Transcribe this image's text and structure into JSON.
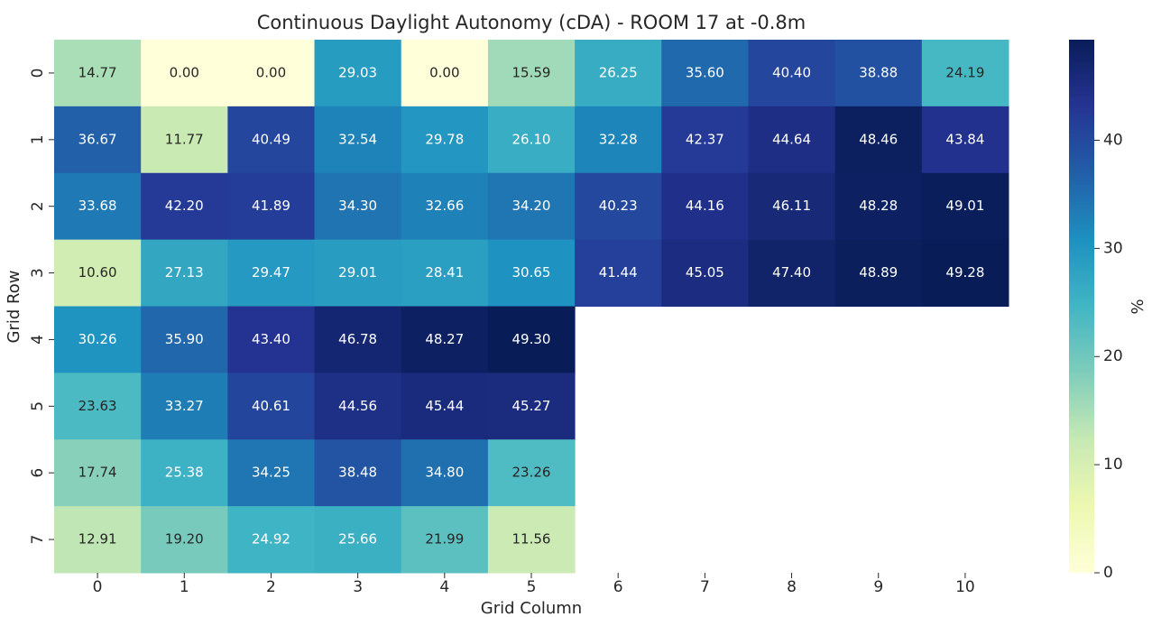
{
  "chart_data": {
    "type": "heatmap",
    "title": "Continuous Daylight Autonomy (cDA) - ROOM 17 at -0.8m",
    "x_label": "Grid Column",
    "y_label": "Grid Row",
    "columns": [
      0,
      1,
      2,
      3,
      4,
      5,
      6,
      7,
      8,
      9,
      10
    ],
    "rows": [
      0,
      1,
      2,
      3,
      4,
      5,
      6,
      7
    ],
    "colormap": "YlGnBu",
    "values": [
      [
        14.77,
        0,
        0,
        29.03,
        0,
        15.59,
        26.25,
        35.6,
        40.4,
        38.88,
        24.19
      ],
      [
        36.67,
        11.77,
        40.49,
        32.54,
        29.78,
        26.1,
        32.28,
        42.37,
        44.64,
        48.46,
        43.84
      ],
      [
        33.68,
        42.2,
        41.89,
        34.3,
        32.66,
        34.2,
        40.23,
        44.16,
        46.11,
        48.28,
        49.01
      ],
      [
        10.6,
        27.13,
        29.47,
        29.01,
        28.41,
        30.65,
        41.44,
        45.05,
        47.4,
        48.89,
        49.28
      ],
      [
        30.26,
        35.9,
        43.4,
        46.78,
        48.27,
        49.3,
        null,
        null,
        null,
        null,
        null
      ],
      [
        23.63,
        33.27,
        40.61,
        44.56,
        45.44,
        45.27,
        null,
        null,
        null,
        null,
        null
      ],
      [
        17.74,
        25.38,
        34.25,
        38.48,
        34.8,
        23.26,
        null,
        null,
        null,
        null,
        null
      ],
      [
        12.91,
        19.2,
        24.92,
        25.66,
        21.99,
        11.56,
        null,
        null,
        null,
        null,
        null
      ]
    ],
    "value_labels": [
      [
        "14.77",
        "0.00",
        "0.00",
        "29.03",
        "0.00",
        "15.59",
        "26.25",
        "35.60",
        "40.40",
        "38.88",
        "24.19"
      ],
      [
        "36.67",
        "11.77",
        "40.49",
        "32.54",
        "29.78",
        "26.10",
        "32.28",
        "42.37",
        "44.64",
        "48.46",
        "43.84"
      ],
      [
        "33.68",
        "42.20",
        "41.89",
        "34.30",
        "32.66",
        "34.20",
        "40.23",
        "44.16",
        "46.11",
        "48.28",
        "49.01"
      ],
      [
        "10.60",
        "27.13",
        "29.47",
        "29.01",
        "28.41",
        "30.65",
        "41.44",
        "45.05",
        "47.40",
        "48.89",
        "49.28"
      ],
      [
        "30.26",
        "35.90",
        "43.40",
        "46.78",
        "48.27",
        "49.30",
        null,
        null,
        null,
        null,
        null
      ],
      [
        "23.63",
        "33.27",
        "40.61",
        "44.56",
        "45.44",
        "45.27",
        null,
        null,
        null,
        null,
        null
      ],
      [
        "17.74",
        "25.38",
        "34.25",
        "38.48",
        "34.80",
        "23.26",
        null,
        null,
        null,
        null,
        null
      ],
      [
        "12.91",
        "19.20",
        "24.92",
        "25.66",
        "21.99",
        "11.56",
        null,
        null,
        null,
        null,
        null
      ]
    ],
    "colorbar": {
      "label": "%",
      "lim": [
        0,
        49.3
      ],
      "ticks": [
        0,
        10,
        20,
        30,
        40
      ]
    }
  }
}
